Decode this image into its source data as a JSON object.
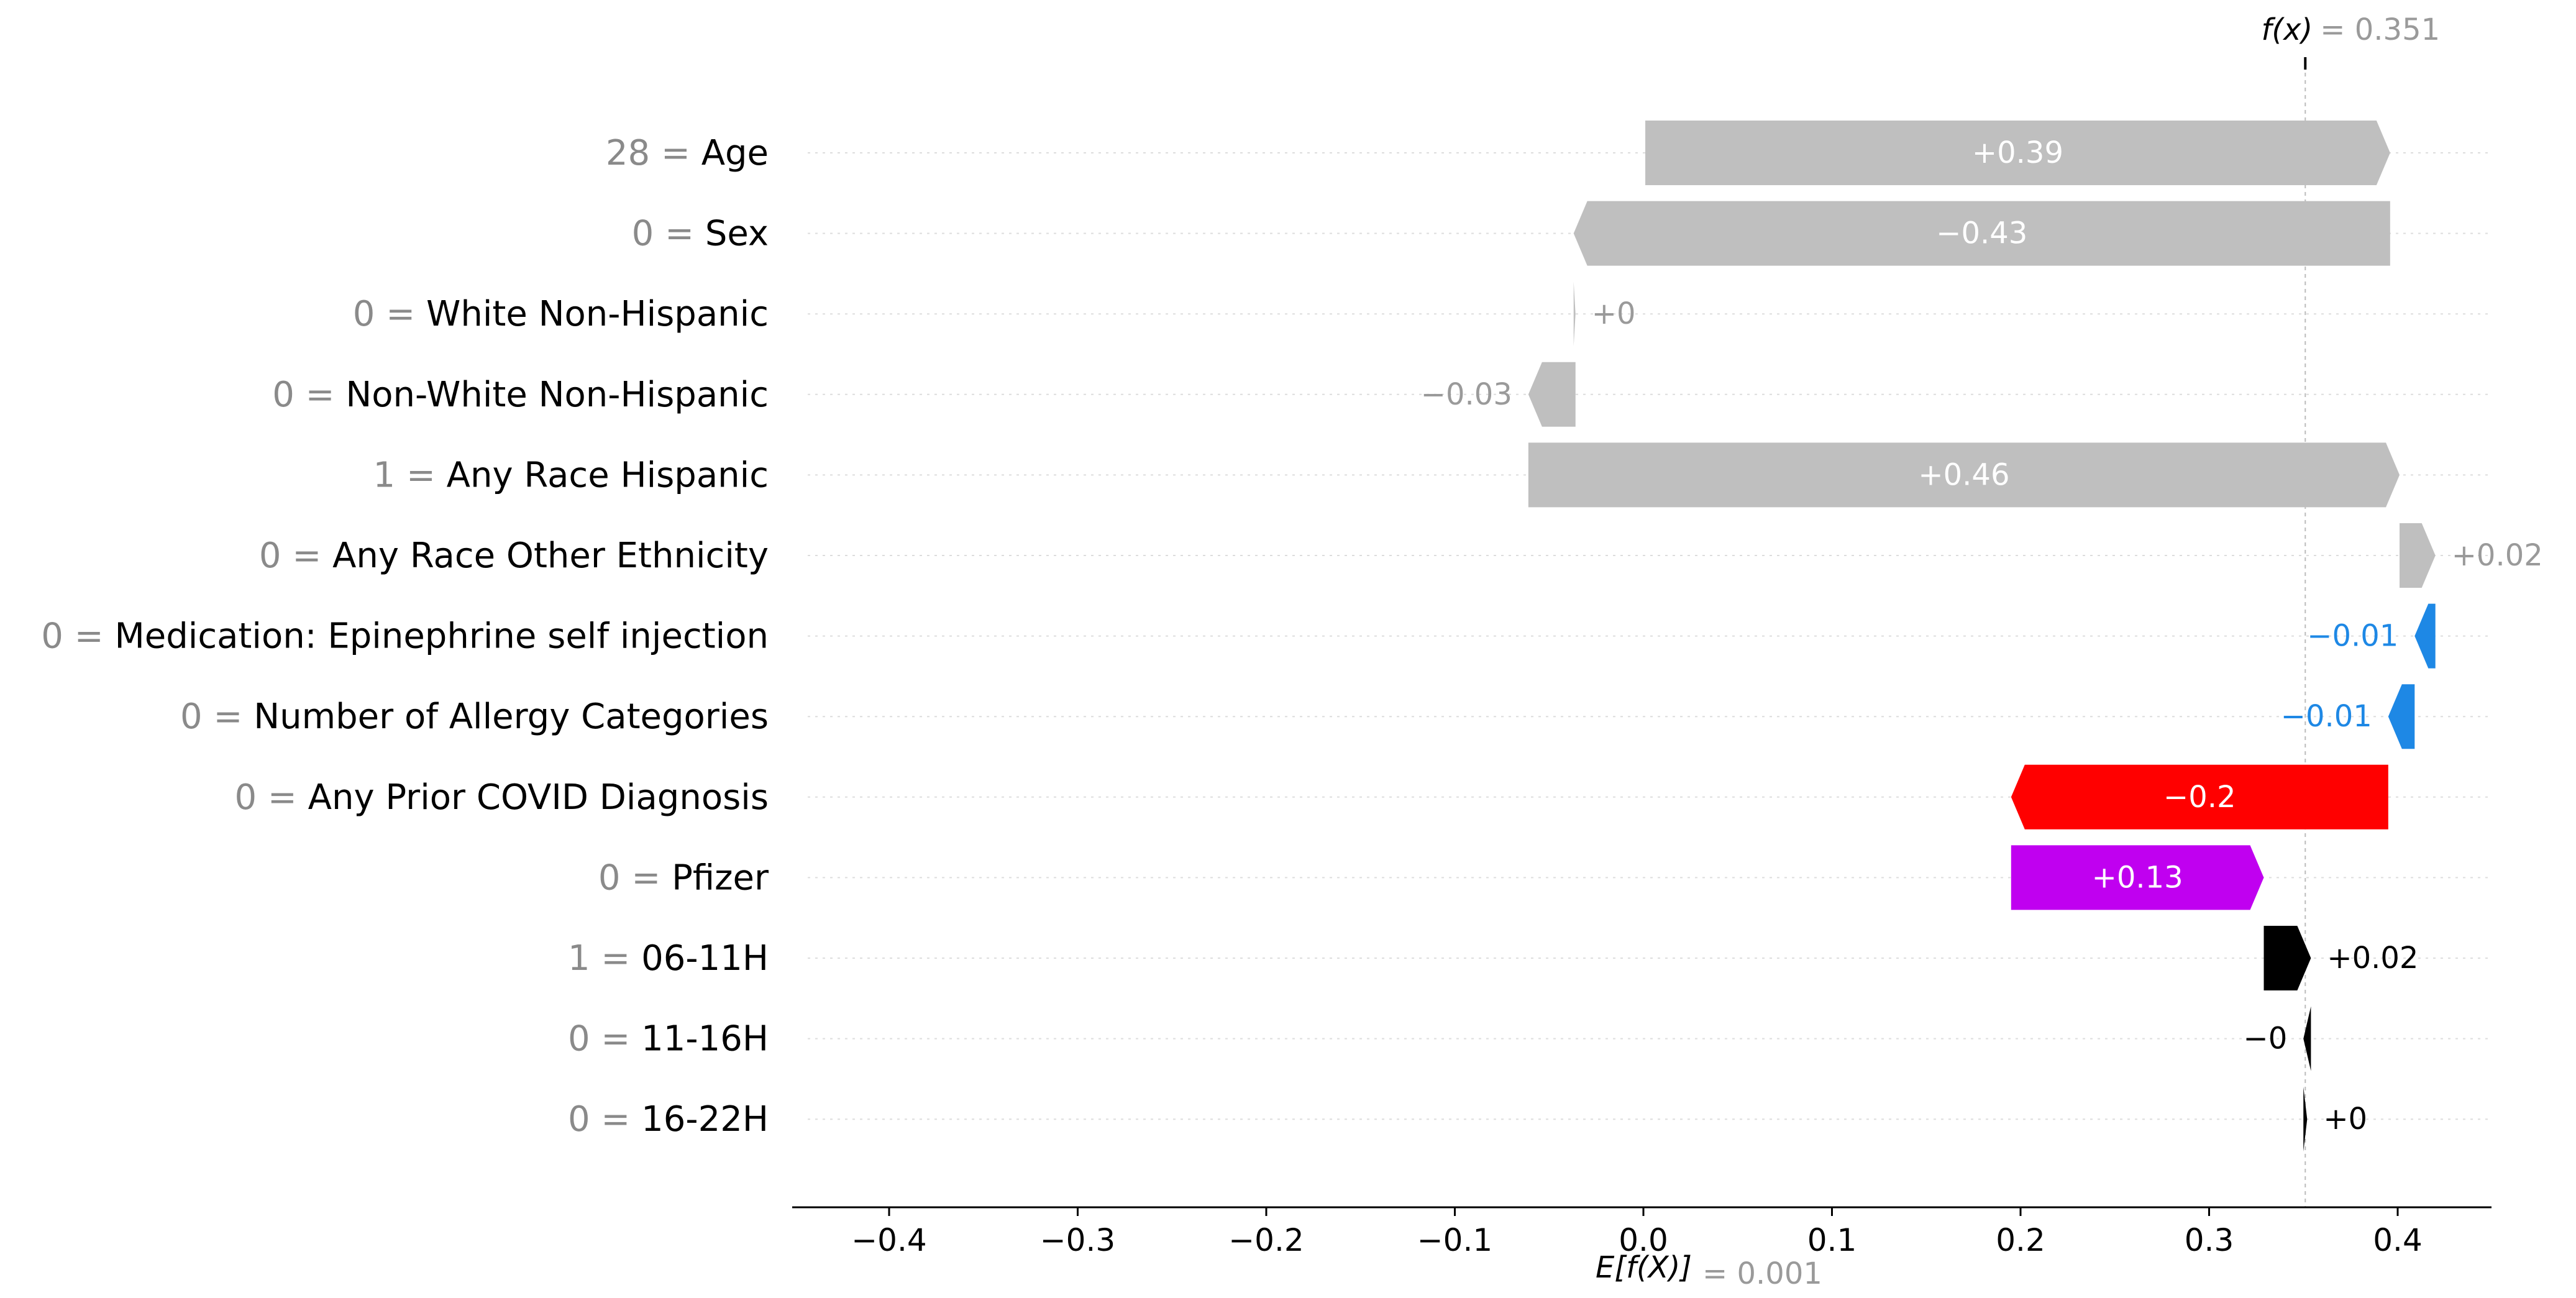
{
  "chart_data": {
    "type": "waterfall",
    "base_value": 0.001,
    "final_value": 0.351,
    "base_label_prefix": "E[f(X)]",
    "base_label_value": "= 0.001",
    "final_label_prefix": "f(x)",
    "final_label_value": "= 0.351",
    "xlim": [
      -0.445,
      0.452
    ],
    "xticks": [
      -0.4,
      -0.3,
      -0.2,
      -0.1,
      0.0,
      0.1,
      0.2,
      0.3,
      0.4
    ],
    "xtick_labels": [
      "−0.4",
      "−0.3",
      "−0.2",
      "−0.1",
      "0.0",
      "0.1",
      "0.2",
      "0.3",
      "0.4"
    ],
    "grid": "horizontal dotted per feature row",
    "colors": {
      "gray": "#bfbfbf",
      "gray_text": "#9a9a9a",
      "blue": "#1e88e5",
      "red": "#ff0000",
      "purple": "#c000f0",
      "black": "#000000"
    },
    "features": [
      {
        "value": "28",
        "name": "Age",
        "contribution": 0.395,
        "label": "+0.39",
        "color": "gray"
      },
      {
        "value": "0",
        "name": "Sex",
        "contribution": -0.433,
        "label": "−0.43",
        "color": "gray"
      },
      {
        "value": "0",
        "name": "White Non-Hispanic",
        "contribution": 0.001,
        "label": "+0",
        "color": "gray"
      },
      {
        "value": "0",
        "name": "Non-White Non-Hispanic",
        "contribution": -0.025,
        "label": "−0.03",
        "color": "gray"
      },
      {
        "value": "1",
        "name": "Any Race Hispanic",
        "contribution": 0.462,
        "label": "+0.46",
        "color": "gray"
      },
      {
        "value": "0",
        "name": "Any Race Other Ethnicity",
        "contribution": 0.019,
        "label": "+0.02",
        "color": "gray"
      },
      {
        "value": "0",
        "name": "Medication: Epinephrine self injection",
        "contribution": -0.011,
        "label": "−0.01",
        "color": "blue"
      },
      {
        "value": "0",
        "name": "Number of Allergy Categories",
        "contribution": -0.014,
        "label": "−0.01",
        "color": "blue"
      },
      {
        "value": "0",
        "name": "Any Prior COVID Diagnosis",
        "contribution": -0.2,
        "label": "−0.2",
        "color": "red"
      },
      {
        "value": "0",
        "name": "Pfizer",
        "contribution": 0.134,
        "label": "+0.13",
        "color": "purple"
      },
      {
        "value": "1",
        "name": "06-11H",
        "contribution": 0.025,
        "label": "+0.02",
        "color": "black"
      },
      {
        "value": "0",
        "name": "11-16H",
        "contribution": -0.004,
        "label": "−0",
        "color": "black"
      },
      {
        "value": "0",
        "name": "16-22H",
        "contribution": 0.002,
        "label": "+0",
        "color": "black"
      }
    ]
  }
}
